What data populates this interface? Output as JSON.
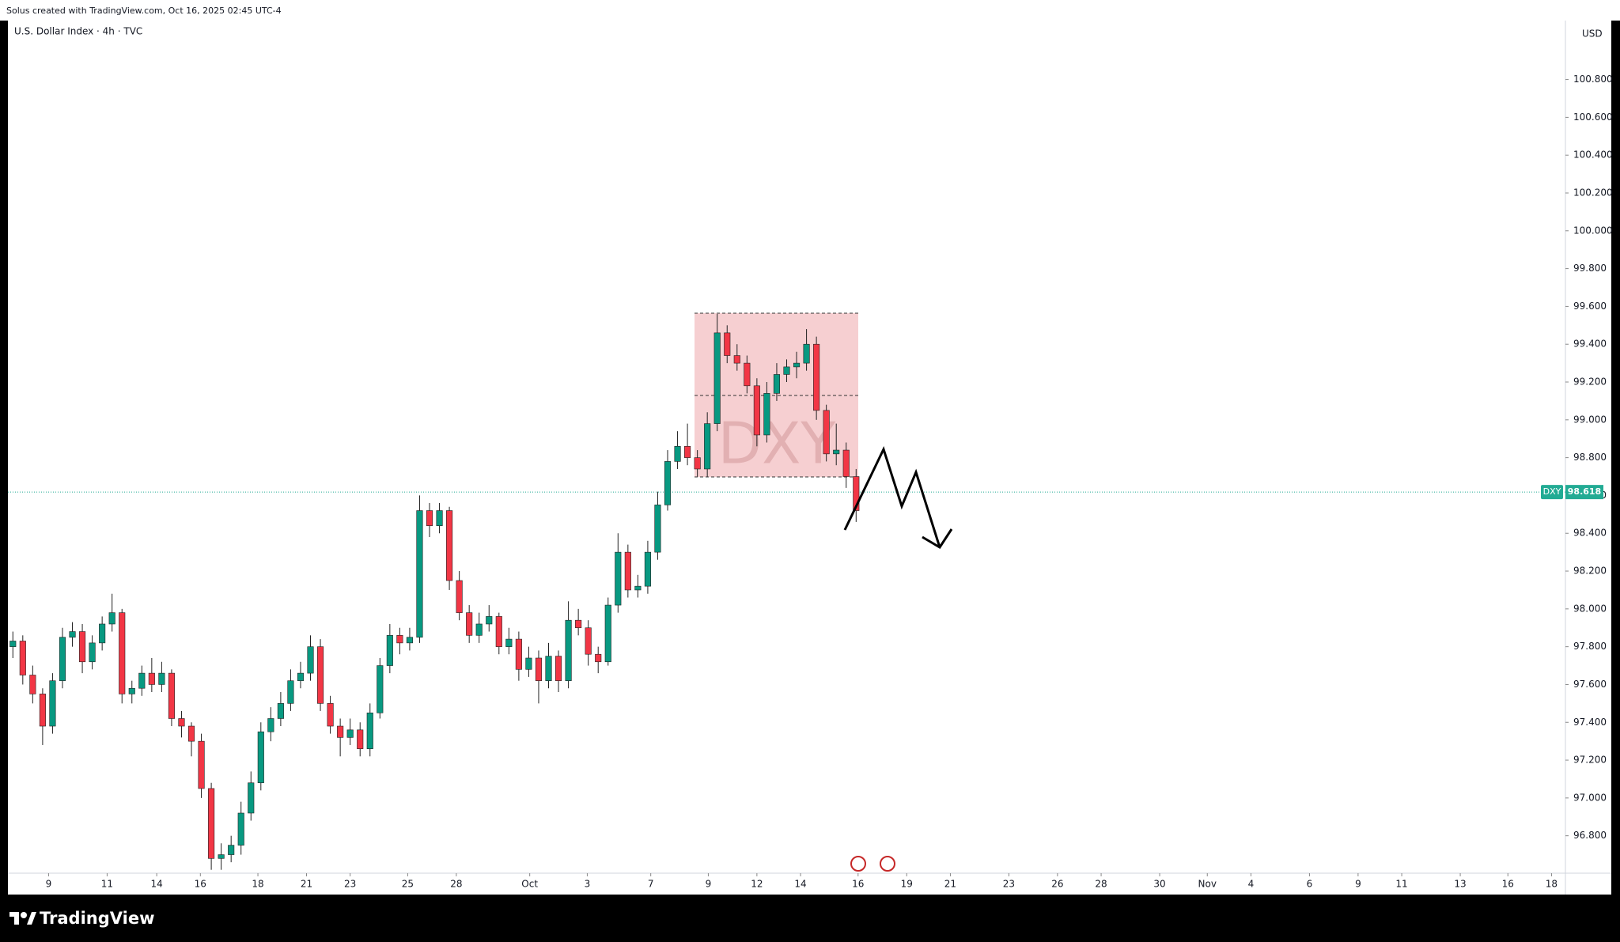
{
  "header": {
    "credit": "Solus created with TradingView.com, Oct 16, 2025 02:45 UTC-4"
  },
  "footer": {
    "brand": "TradingView"
  },
  "chart_data": {
    "type": "candlestick",
    "title": "U.S. Dollar Index · 4h · TVC",
    "currency": "USD",
    "watermark": "DXY",
    "up_color": "#089981",
    "down_color": "#f23645",
    "last_price": {
      "symbol": "DXY",
      "value": 98.618,
      "label": "98.618",
      "color": "#22ab94"
    },
    "xlim": [
      -0.5,
      156.5
    ],
    "xticks": [
      {
        "value": 3.6,
        "label": "9"
      },
      {
        "value": 9.5,
        "label": "11"
      },
      {
        "value": 14.5,
        "label": "14"
      },
      {
        "value": 18.9,
        "label": "16"
      },
      {
        "value": 24.7,
        "label": "18"
      },
      {
        "value": 29.6,
        "label": "21"
      },
      {
        "value": 34.0,
        "label": "23"
      },
      {
        "value": 39.8,
        "label": "25"
      },
      {
        "value": 44.7,
        "label": "28"
      },
      {
        "value": 52.1,
        "label": "Oct"
      },
      {
        "value": 57.9,
        "label": "3"
      },
      {
        "value": 64.3,
        "label": "7"
      },
      {
        "value": 70.1,
        "label": "9"
      },
      {
        "value": 75.0,
        "label": "12"
      },
      {
        "value": 79.4,
        "label": "14"
      },
      {
        "value": 85.2,
        "label": "16"
      },
      {
        "value": 90.1,
        "label": "19"
      },
      {
        "value": 94.5,
        "label": "21"
      },
      {
        "value": 100.4,
        "label": "23"
      },
      {
        "value": 105.3,
        "label": "26"
      },
      {
        "value": 109.7,
        "label": "28"
      },
      {
        "value": 115.6,
        "label": "30"
      },
      {
        "value": 120.4,
        "label": "Nov"
      },
      {
        "value": 124.8,
        "label": "4"
      },
      {
        "value": 130.7,
        "label": "6"
      },
      {
        "value": 135.6,
        "label": "9"
      },
      {
        "value": 140.0,
        "label": "11"
      },
      {
        "value": 145.9,
        "label": "13"
      },
      {
        "value": 150.7,
        "label": "16"
      },
      {
        "value": 155.1,
        "label": "18"
      }
    ],
    "ylim": [
      96.602,
      101.112
    ],
    "yticks": [
      {
        "value": 96.8,
        "label": "96.800"
      },
      {
        "value": 97,
        "label": "97.000"
      },
      {
        "value": 97.2,
        "label": "97.200"
      },
      {
        "value": 97.4,
        "label": "97.400"
      },
      {
        "value": 97.6,
        "label": "97.600"
      },
      {
        "value": 97.8,
        "label": "97.800"
      },
      {
        "value": 98,
        "label": "98.000"
      },
      {
        "value": 98.2,
        "label": "98.200"
      },
      {
        "value": 98.4,
        "label": "98.400"
      },
      {
        "value": 98.6,
        "label": "98.600"
      },
      {
        "value": 98.8,
        "label": "98.800"
      },
      {
        "value": 99,
        "label": "99.000"
      },
      {
        "value": 99.2,
        "label": "99.200"
      },
      {
        "value": 99.4,
        "label": "99.400"
      },
      {
        "value": 99.6,
        "label": "99.600"
      },
      {
        "value": 99.8,
        "label": "99.800"
      },
      {
        "value": 100,
        "label": "100.000"
      },
      {
        "value": 100.2,
        "label": "100.200"
      },
      {
        "value": 100.4,
        "label": "100.400"
      },
      {
        "value": 100.6,
        "label": "100.600"
      },
      {
        "value": 100.8,
        "label": "100.800"
      }
    ],
    "ohlc": [
      [
        97.8,
        97.88,
        97.74,
        97.83
      ],
      [
        97.83,
        97.86,
        97.6,
        97.65
      ],
      [
        97.65,
        97.7,
        97.5,
        97.55
      ],
      [
        97.55,
        97.58,
        97.28,
        97.38
      ],
      [
        97.38,
        97.66,
        97.34,
        97.62
      ],
      [
        97.62,
        97.9,
        97.58,
        97.85
      ],
      [
        97.85,
        97.93,
        97.8,
        97.88
      ],
      [
        97.88,
        97.92,
        97.66,
        97.72
      ],
      [
        97.72,
        97.86,
        97.68,
        97.82
      ],
      [
        97.82,
        97.96,
        97.78,
        97.92
      ],
      [
        97.92,
        98.08,
        97.88,
        97.98
      ],
      [
        97.98,
        98.0,
        97.5,
        97.55
      ],
      [
        97.55,
        97.62,
        97.5,
        97.58
      ],
      [
        97.58,
        97.7,
        97.54,
        97.66
      ],
      [
        97.66,
        97.74,
        97.56,
        97.6
      ],
      [
        97.6,
        97.72,
        97.56,
        97.66
      ],
      [
        97.66,
        97.68,
        97.38,
        97.42
      ],
      [
        97.42,
        97.46,
        97.32,
        97.38
      ],
      [
        97.38,
        97.4,
        97.22,
        97.3
      ],
      [
        97.3,
        97.34,
        97.0,
        97.05
      ],
      [
        97.05,
        97.08,
        96.62,
        96.68
      ],
      [
        96.68,
        96.76,
        96.62,
        96.7
      ],
      [
        96.7,
        96.8,
        96.66,
        96.75
      ],
      [
        96.75,
        96.98,
        96.7,
        96.92
      ],
      [
        96.92,
        97.14,
        96.88,
        97.08
      ],
      [
        97.08,
        97.4,
        97.04,
        97.35
      ],
      [
        97.35,
        97.48,
        97.3,
        97.42
      ],
      [
        97.42,
        97.56,
        97.38,
        97.5
      ],
      [
        97.5,
        97.68,
        97.46,
        97.62
      ],
      [
        97.62,
        97.72,
        97.58,
        97.66
      ],
      [
        97.66,
        97.86,
        97.62,
        97.8
      ],
      [
        97.8,
        97.84,
        97.46,
        97.5
      ],
      [
        97.5,
        97.54,
        97.34,
        97.38
      ],
      [
        97.38,
        97.42,
        97.22,
        97.32
      ],
      [
        97.32,
        97.42,
        97.28,
        97.36
      ],
      [
        97.36,
        97.4,
        97.22,
        97.26
      ],
      [
        97.26,
        97.5,
        97.22,
        97.45
      ],
      [
        97.45,
        97.74,
        97.42,
        97.7
      ],
      [
        97.7,
        97.92,
        97.66,
        97.86
      ],
      [
        97.86,
        97.9,
        97.76,
        97.82
      ],
      [
        97.82,
        97.9,
        97.78,
        97.85
      ],
      [
        97.85,
        98.6,
        97.82,
        98.52
      ],
      [
        98.52,
        98.56,
        98.38,
        98.44
      ],
      [
        98.44,
        98.56,
        98.4,
        98.52
      ],
      [
        98.52,
        98.54,
        98.1,
        98.15
      ],
      [
        98.15,
        98.2,
        97.94,
        97.98
      ],
      [
        97.98,
        98.02,
        97.82,
        97.86
      ],
      [
        97.86,
        97.98,
        97.82,
        97.92
      ],
      [
        97.92,
        98.02,
        97.88,
        97.96
      ],
      [
        97.96,
        97.98,
        97.76,
        97.8
      ],
      [
        97.8,
        97.9,
        97.76,
        97.84
      ],
      [
        97.84,
        97.88,
        97.62,
        97.68
      ],
      [
        97.68,
        97.8,
        97.64,
        97.74
      ],
      [
        97.74,
        97.78,
        97.5,
        97.62
      ],
      [
        97.62,
        97.82,
        97.58,
        97.75
      ],
      [
        97.75,
        97.78,
        97.56,
        97.62
      ],
      [
        97.62,
        98.04,
        97.58,
        97.94
      ],
      [
        97.94,
        98.0,
        97.86,
        97.9
      ],
      [
        97.9,
        97.94,
        97.7,
        97.76
      ],
      [
        97.76,
        97.8,
        97.66,
        97.72
      ],
      [
        97.72,
        98.06,
        97.7,
        98.02
      ],
      [
        98.02,
        98.4,
        97.98,
        98.3
      ],
      [
        98.3,
        98.34,
        98.06,
        98.1
      ],
      [
        98.1,
        98.18,
        98.06,
        98.12
      ],
      [
        98.12,
        98.36,
        98.08,
        98.3
      ],
      [
        98.3,
        98.62,
        98.26,
        98.55
      ],
      [
        98.55,
        98.84,
        98.52,
        98.78
      ],
      [
        98.78,
        98.94,
        98.74,
        98.86
      ],
      [
        98.86,
        98.98,
        98.76,
        98.8
      ],
      [
        98.8,
        98.84,
        98.7,
        98.74
      ],
      [
        98.74,
        99.04,
        98.7,
        98.98
      ],
      [
        98.98,
        99.56,
        98.94,
        99.46
      ],
      [
        99.46,
        99.5,
        99.3,
        99.34
      ],
      [
        99.34,
        99.4,
        99.26,
        99.3
      ],
      [
        99.3,
        99.34,
        99.14,
        99.18
      ],
      [
        99.18,
        99.22,
        98.86,
        98.92
      ],
      [
        98.92,
        99.2,
        98.88,
        99.14
      ],
      [
        99.14,
        99.3,
        99.1,
        99.24
      ],
      [
        99.24,
        99.32,
        99.2,
        99.28
      ],
      [
        99.28,
        99.36,
        99.22,
        99.3
      ],
      [
        99.3,
        99.48,
        99.26,
        99.4
      ],
      [
        99.4,
        99.44,
        99.0,
        99.05
      ],
      [
        99.05,
        99.08,
        98.78,
        98.82
      ],
      [
        98.82,
        98.98,
        98.76,
        98.84
      ],
      [
        98.84,
        98.88,
        98.64,
        98.7
      ],
      [
        98.7,
        98.74,
        98.46,
        98.52
      ]
    ]
  }
}
